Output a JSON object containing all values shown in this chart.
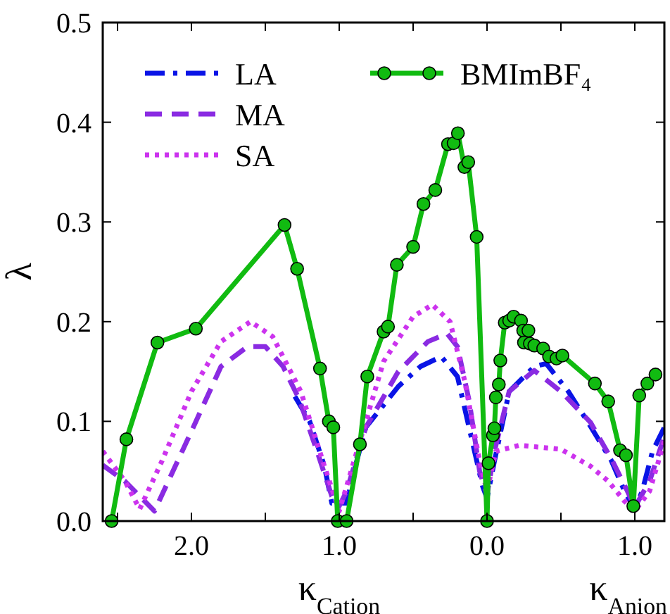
{
  "chart_data": {
    "type": "line",
    "xlabel": "κ$_{Cation}$",
    "ylabel": "λ",
    "annotations": [
      "κ$_{Anion}$"
    ],
    "xlim": [
      -2.6,
      1.2
    ],
    "ylim": [
      0,
      0.5
    ],
    "xticks": [
      {
        "value": -2.5,
        "label": null
      },
      {
        "value": -2,
        "label": "2.0"
      },
      {
        "value": -1.5,
        "label": null
      },
      {
        "value": -1,
        "label": "1.0"
      },
      {
        "value": -0.5,
        "label": null
      },
      {
        "value": 0,
        "label": "0.0"
      },
      {
        "value": 0.5,
        "label": null
      },
      {
        "value": 1,
        "label": "1.0"
      }
    ],
    "yticks": [
      {
        "value": 0,
        "label": "0.0"
      },
      {
        "value": 0.1,
        "label": "0.1"
      },
      {
        "value": 0.2,
        "label": "0.2"
      },
      {
        "value": 0.3,
        "label": "0.3"
      },
      {
        "value": 0.4,
        "label": "0.4"
      },
      {
        "value": 0.5,
        "label": "0.5"
      }
    ],
    "grid": false,
    "legend": "top left",
    "series": [
      {
        "name": "LA",
        "color": "#0a14e6",
        "line_style": "dashdot",
        "marker": "none",
        "x": [
          -1.3,
          -1.2,
          -1.1,
          -1.05,
          -0.95,
          -0.9,
          -0.82,
          -0.6,
          -0.45,
          -0.31,
          -0.2,
          -0.1,
          -0.03,
          0,
          0.05,
          0.15,
          0.32,
          0.4,
          0.55,
          0.7,
          0.84,
          0.93,
          1.0,
          1.05,
          1.12,
          1.2
        ],
        "values": [
          0.125,
          0.1,
          0.055,
          0.018,
          0.018,
          0.05,
          0.094,
          0.135,
          0.155,
          0.165,
          0.145,
          0.08,
          0.035,
          0.023,
          0.06,
          0.13,
          0.155,
          0.158,
          0.13,
          0.095,
          0.061,
          0.03,
          0.012,
          0.03,
          0.07,
          0.094
        ]
      },
      {
        "name": "MA",
        "color": "#8a2be2",
        "line_style": "dashed",
        "marker": "none",
        "x": [
          -2.6,
          -2.45,
          -2.25,
          -2.0,
          -1.8,
          -1.62,
          -1.5,
          -1.38,
          -1.27,
          -1.15,
          -1.05,
          -1.0,
          -0.95,
          -0.82,
          -0.6,
          -0.4,
          -0.27,
          -0.2,
          -0.12,
          -0.05,
          0,
          0.05,
          0.15,
          0.32,
          0.5,
          0.7,
          0.85,
          0.95,
          1.0,
          1.1,
          1.2
        ],
        "values": [
          0.056,
          0.04,
          0.01,
          0.09,
          0.155,
          0.175,
          0.175,
          0.155,
          0.122,
          0.07,
          0.025,
          0.015,
          0.03,
          0.094,
          0.15,
          0.18,
          0.188,
          0.175,
          0.12,
          0.05,
          0.026,
          0.07,
          0.13,
          0.151,
          0.13,
          0.099,
          0.06,
          0.03,
          0.014,
          0.04,
          0.085
        ]
      },
      {
        "name": "SA",
        "color": "#cc33ee",
        "line_style": "dotted",
        "marker": "none",
        "x": [
          -2.6,
          -2.45,
          -2.35,
          -2.2,
          -2.0,
          -1.8,
          -1.6,
          -1.45,
          -1.26,
          -1.1,
          -1.0,
          -0.9,
          -0.7,
          -0.5,
          -0.37,
          -0.25,
          -0.15,
          -0.05,
          0,
          0.06,
          0.22,
          0.5,
          0.7,
          0.82,
          0.93,
          1.0,
          1.1,
          1.2
        ],
        "values": [
          0.07,
          0.04,
          0.012,
          0.06,
          0.13,
          0.18,
          0.2,
          0.185,
          0.13,
          0.055,
          0.01,
          0.06,
          0.16,
          0.205,
          0.217,
          0.2,
          0.14,
          0.06,
          0.03,
          0.07,
          0.076,
          0.072,
          0.055,
          0.04,
          0.02,
          0.01,
          0.03,
          0.08
        ]
      },
      {
        "name": "BMImBF₄",
        "color": "#11bb11",
        "line_style": "solid",
        "marker": "circle",
        "x": [
          -2.54,
          -2.44,
          -2.23,
          -1.97,
          -1.37,
          -1.285,
          -1.13,
          -1.07,
          -1.04,
          -1.01,
          -0.95,
          -0.86,
          -0.81,
          -0.7,
          -0.67,
          -0.61,
          -0.5,
          -0.43,
          -0.35,
          -0.264,
          -0.226,
          -0.197,
          -0.153,
          -0.127,
          -0.07,
          0,
          0.01,
          0.04,
          0.05,
          0.06,
          0.08,
          0.09,
          0.12,
          0.15,
          0.18,
          0.23,
          0.245,
          0.25,
          0.28,
          0.29,
          0.32,
          0.38,
          0.42,
          0.47,
          0.51,
          0.73,
          0.82,
          0.9,
          0.94,
          0.99,
          1.03,
          1.085,
          1.14
        ],
        "values": [
          0,
          0.082,
          0.179,
          0.193,
          0.297,
          0.253,
          0.153,
          0.1,
          0.094,
          0,
          0,
          0.077,
          0.145,
          0.19,
          0.195,
          0.257,
          0.275,
          0.318,
          0.332,
          0.378,
          0.379,
          0.389,
          0.355,
          0.36,
          0.285,
          0,
          0.058,
          0.086,
          0.093,
          0.124,
          0.137,
          0.161,
          0.199,
          0.201,
          0.205,
          0.201,
          0.191,
          0.179,
          0.191,
          0.178,
          0.176,
          0.173,
          0.165,
          0.163,
          0.166,
          0.138,
          0.12,
          0.071,
          0.066,
          0.015,
          0.126,
          0.138,
          0.147
        ]
      }
    ]
  }
}
